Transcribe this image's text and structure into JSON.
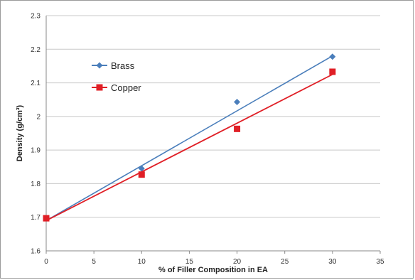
{
  "chart_data": {
    "type": "scatter",
    "title": "",
    "xlabel": "% of Filler Composition in EA",
    "ylabel": "Density (g/cm³)",
    "xlim": [
      0,
      35
    ],
    "ylim": [
      1.6,
      2.3
    ],
    "x_ticks": [
      "0",
      "5",
      "10",
      "15",
      "20",
      "25",
      "30",
      "35"
    ],
    "y_ticks": [
      "1.6",
      "1.7",
      "1.8",
      "1.9",
      "2",
      "2.1",
      "2.2",
      "2.3"
    ],
    "x_tick_values": [
      0,
      5,
      10,
      15,
      20,
      25,
      30,
      35
    ],
    "y_tick_values": [
      1.6,
      1.7,
      1.8,
      1.9,
      2.0,
      2.1,
      2.2,
      2.3
    ],
    "grid": "horizontal",
    "legend_position": "top-left",
    "series": [
      {
        "name": "Brass",
        "color": "#4a7ebb",
        "marker": "diamond",
        "x": [
          0,
          10,
          20,
          30
        ],
        "y": [
          1.697,
          1.845,
          2.043,
          2.178
        ],
        "trendline": {
          "x": [
            0,
            30
          ],
          "y": [
            1.69,
            2.18
          ]
        }
      },
      {
        "name": "Copper",
        "color": "#e01f26",
        "marker": "square",
        "x": [
          0,
          10,
          20,
          30
        ],
        "y": [
          1.697,
          1.827,
          1.963,
          2.133
        ],
        "trendline": {
          "x": [
            0,
            30
          ],
          "y": [
            1.69,
            2.125
          ]
        }
      }
    ]
  }
}
